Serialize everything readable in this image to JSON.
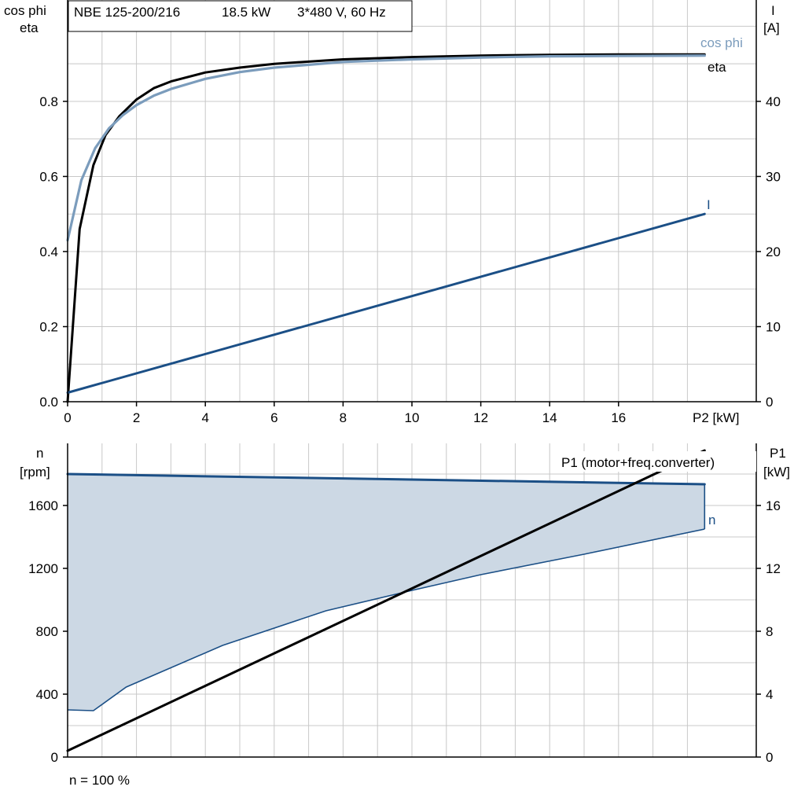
{
  "title_box": {
    "model": "NBE 125-200/216",
    "power": "18.5 kW",
    "supply": "3*480 V, 60 Hz"
  },
  "footer_note": "n = 100 %",
  "colors": {
    "cosphi": "#7b9cbc",
    "eta": "#000000",
    "current": "#1b4f86",
    "speed_fill": "#ccd8e4",
    "speed_line": "#1b4f86",
    "p1": "#000000",
    "grid": "#c8c8c8"
  },
  "chart_data": [
    {
      "type": "line",
      "xlabel": "P2 [kW]",
      "x_ticks": [
        "0",
        "2",
        "4",
        "6",
        "8",
        "10",
        "12",
        "14",
        "16"
      ],
      "xlim": [
        0,
        20
      ],
      "ylabel_left": [
        "cos phi",
        "eta"
      ],
      "ylim_left": [
        0,
        1.07
      ],
      "y_ticks_left": [
        "0.0",
        "0.2",
        "0.4",
        "0.6",
        "0.8"
      ],
      "ylabel_right": [
        "I",
        "[A]"
      ],
      "ylim_right": [
        0,
        53.5
      ],
      "y_ticks_right": [
        "0",
        "10",
        "20",
        "30",
        "40"
      ],
      "grid": true,
      "series": [
        {
          "name": "cos phi",
          "axis": "left",
          "x": [
            0,
            0.4,
            0.8,
            1.2,
            1.6,
            2,
            2.5,
            3,
            4,
            5,
            6,
            8,
            10,
            12,
            14,
            16,
            18.5
          ],
          "y": [
            0.43,
            0.59,
            0.675,
            0.728,
            0.763,
            0.79,
            0.815,
            0.833,
            0.86,
            0.878,
            0.89,
            0.905,
            0.912,
            0.917,
            0.92,
            0.921,
            0.922
          ]
        },
        {
          "name": "eta",
          "axis": "left",
          "x": [
            0,
            0.35,
            0.75,
            1.1,
            1.5,
            2,
            2.5,
            3,
            4,
            5,
            6,
            8,
            10,
            12,
            14,
            16,
            18.5
          ],
          "y": [
            0.0,
            0.46,
            0.63,
            0.71,
            0.76,
            0.805,
            0.835,
            0.853,
            0.877,
            0.89,
            0.9,
            0.912,
            0.918,
            0.922,
            0.924,
            0.925,
            0.925
          ]
        },
        {
          "name": "I",
          "axis": "right",
          "x": [
            0,
            18.5
          ],
          "y": [
            1.2,
            25.0
          ]
        }
      ]
    },
    {
      "type": "area",
      "xlim": [
        0,
        20
      ],
      "ylabel_left": [
        "n",
        "[rpm]"
      ],
      "ylim_left": [
        0,
        1995
      ],
      "y_ticks_left": [
        "0",
        "400",
        "800",
        "1200",
        "1600"
      ],
      "ylabel_right": [
        "P1",
        "[kW]"
      ],
      "ylim_right": [
        0,
        19.95
      ],
      "y_ticks_right": [
        "0",
        "4",
        "8",
        "12",
        "16"
      ],
      "grid": true,
      "series": [
        {
          "name": "n",
          "axis": "left",
          "x": [
            0,
            18.5
          ],
          "y": [
            1800,
            1735
          ],
          "band_lower": {
            "x": [
              0,
              0.75,
              1.7,
              4.5,
              7.5,
              10,
              12,
              15,
              18.5
            ],
            "y": [
              300,
              295,
              445,
              710,
              930,
              1060,
              1160,
              1290,
              1450
            ]
          }
        },
        {
          "name": "P1 (motor+freq.converter)",
          "axis": "right",
          "x": [
            0,
            18.5
          ],
          "y": [
            0.4,
            19.5
          ]
        }
      ]
    }
  ]
}
